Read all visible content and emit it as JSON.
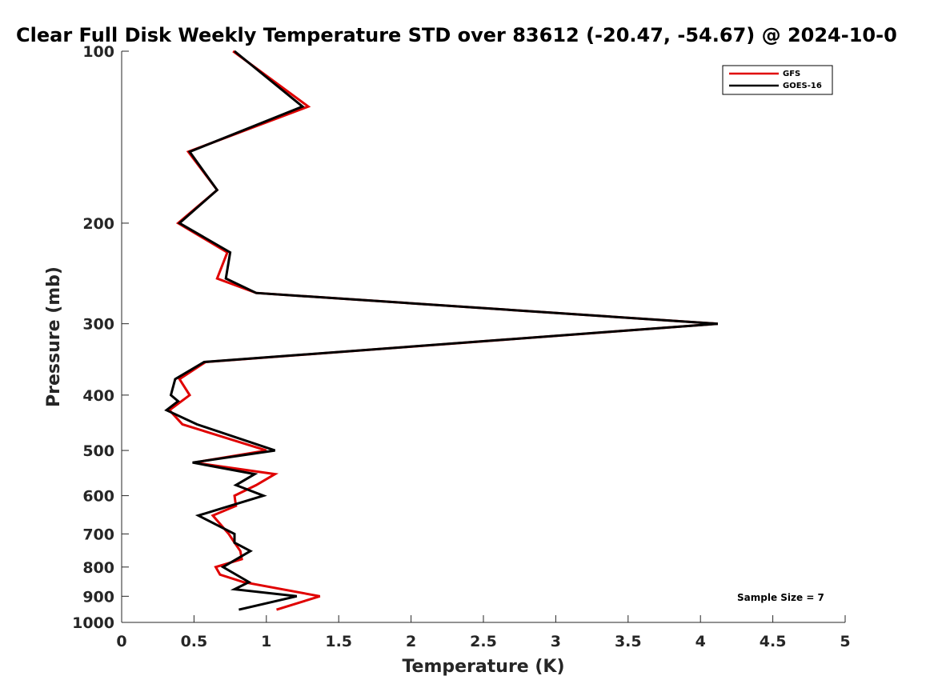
{
  "chart_data": {
    "type": "line",
    "title": "Clear Full Disk Weekly Temperature STD over 83612 (-20.47, -54.67) @ 2024-10-0",
    "xlabel": "Temperature (K)",
    "ylabel": "Pressure (mb)",
    "xlim": [
      0,
      5
    ],
    "ylim": [
      100,
      1000
    ],
    "y_scale": "log",
    "y_reversed": true,
    "x_ticks": [
      0,
      0.5,
      1,
      1.5,
      2,
      2.5,
      3,
      3.5,
      4,
      4.5,
      5
    ],
    "x_tick_labels": [
      "0",
      "0.5",
      "1",
      "1.5",
      "2",
      "2.5",
      "3",
      "3.5",
      "4",
      "4.5",
      "5"
    ],
    "y_ticks": [
      100,
      200,
      300,
      400,
      500,
      600,
      700,
      800,
      900,
      1000
    ],
    "y_tick_labels": [
      "100",
      "200",
      "300",
      "400",
      "500",
      "600",
      "700",
      "800",
      "900",
      "1000"
    ],
    "grid": false,
    "legend_position": "top-right",
    "annotation": "Sample Size = 7",
    "series": [
      {
        "name": "GFS",
        "color": "#e00000",
        "points": [
          [
            0.77,
            100
          ],
          [
            1.29,
            125
          ],
          [
            0.46,
            150
          ],
          [
            0.66,
            175
          ],
          [
            0.39,
            200
          ],
          [
            0.73,
            225
          ],
          [
            0.66,
            250
          ],
          [
            0.93,
            265
          ],
          [
            4.12,
            300
          ],
          [
            0.58,
            350
          ],
          [
            0.4,
            375
          ],
          [
            0.47,
            400
          ],
          [
            0.33,
            425
          ],
          [
            0.42,
            450
          ],
          [
            1.0,
            500
          ],
          [
            0.5,
            525
          ],
          [
            1.06,
            550
          ],
          [
            0.93,
            575
          ],
          [
            0.78,
            600
          ],
          [
            0.79,
            625
          ],
          [
            0.63,
            650
          ],
          [
            0.74,
            700
          ],
          [
            0.78,
            725
          ],
          [
            0.82,
            750
          ],
          [
            0.83,
            775
          ],
          [
            0.65,
            800
          ],
          [
            0.68,
            825
          ],
          [
            0.84,
            850
          ],
          [
            1.37,
            900
          ],
          [
            1.07,
            950
          ]
        ]
      },
      {
        "name": "GOES-16",
        "color": "#000000",
        "points": [
          [
            0.78,
            100
          ],
          [
            1.25,
            125
          ],
          [
            0.47,
            150
          ],
          [
            0.66,
            175
          ],
          [
            0.4,
            200
          ],
          [
            0.75,
            225
          ],
          [
            0.72,
            250
          ],
          [
            0.93,
            265
          ],
          [
            4.12,
            300
          ],
          [
            0.57,
            350
          ],
          [
            0.37,
            375
          ],
          [
            0.34,
            400
          ],
          [
            0.39,
            410
          ],
          [
            0.31,
            425
          ],
          [
            0.52,
            450
          ],
          [
            1.06,
            500
          ],
          [
            0.49,
            525
          ],
          [
            0.92,
            550
          ],
          [
            0.79,
            575
          ],
          [
            0.98,
            600
          ],
          [
            0.53,
            650
          ],
          [
            0.78,
            700
          ],
          [
            0.78,
            725
          ],
          [
            0.89,
            750
          ],
          [
            0.7,
            800
          ],
          [
            0.88,
            850
          ],
          [
            0.78,
            875
          ],
          [
            1.21,
            900
          ],
          [
            0.81,
            950
          ]
        ]
      }
    ]
  }
}
